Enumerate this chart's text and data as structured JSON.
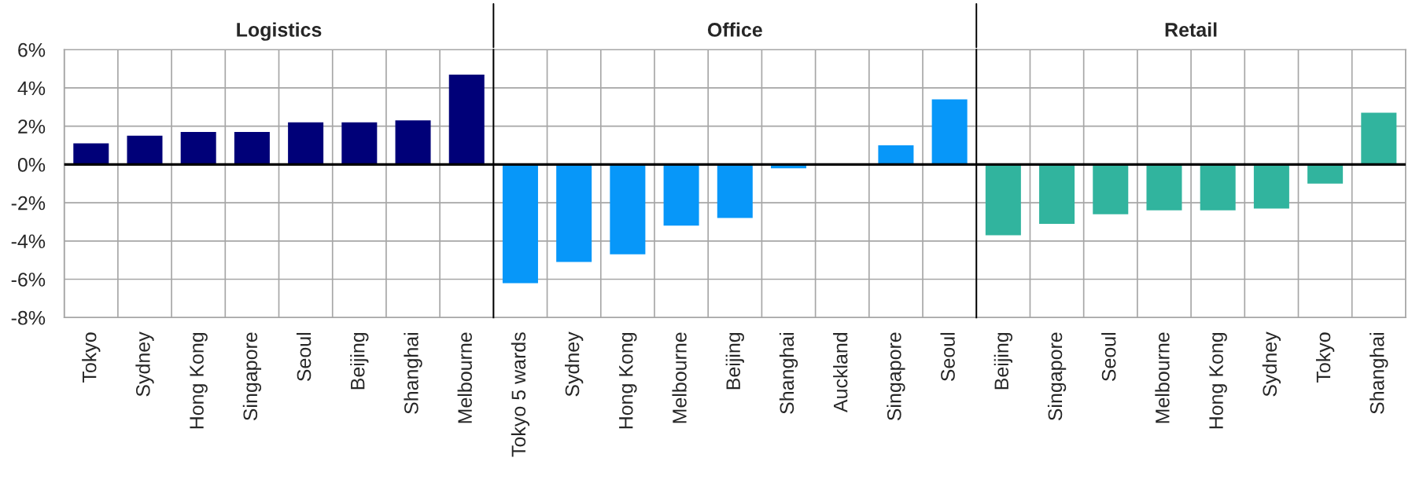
{
  "chart_data": [
    {
      "type": "bar",
      "title": "Logistics",
      "categories": [
        "Tokyo",
        "Sydney",
        "Hong Kong",
        "Singapore",
        "Seoul",
        "Beijing",
        "Shanghai",
        "Melbourne"
      ],
      "values": [
        1.1,
        1.5,
        1.7,
        1.7,
        2.2,
        2.2,
        2.3,
        4.7
      ],
      "color": "#000078",
      "ylim": [
        -8,
        6
      ],
      "yticks": [
        {
          "value": -8,
          "label": "-8%"
        },
        {
          "value": -6,
          "label": "-6%"
        },
        {
          "value": -4,
          "label": "-4%"
        },
        {
          "value": -2,
          "label": "-2%"
        },
        {
          "value": 0,
          "label": "0%"
        },
        {
          "value": 2,
          "label": "2%"
        },
        {
          "value": 4,
          "label": "4%"
        },
        {
          "value": 6,
          "label": "6%"
        }
      ],
      "grid": true,
      "ref_lines": [
        {
          "axis": "y",
          "value": 0,
          "color": "#000000"
        }
      ]
    },
    {
      "type": "bar",
      "title": "Office",
      "categories": [
        "Tokyo 5 wards",
        "Sydney",
        "Hong Kong",
        "Melbourne",
        "Beijing",
        "Shanghai",
        "Auckland",
        "Singapore",
        "Seoul"
      ],
      "values": [
        -6.2,
        -5.1,
        -4.7,
        -3.2,
        -2.8,
        -0.2,
        0,
        1.0,
        3.4
      ],
      "color": "#0797f9",
      "ylim": [
        -8,
        6
      ],
      "yticks": [
        -8,
        -6,
        -4,
        -2,
        0,
        2,
        4,
        6
      ],
      "grid": true,
      "tick_labels": "x",
      "ref_lines": [
        {
          "axis": "y",
          "value": 0,
          "color": "#000000"
        }
      ]
    },
    {
      "type": "bar",
      "title": "Retail",
      "categories": [
        "Beijing",
        "Singapore",
        "Seoul",
        "Melbourne",
        "Hong Kong",
        "Sydney",
        "Tokyo",
        "Shanghai"
      ],
      "values": [
        -3.7,
        -3.1,
        -2.6,
        -2.4,
        -2.4,
        -2.3,
        -1.0,
        2.7
      ],
      "color": "#31b49e",
      "ylim": [
        -8,
        6
      ],
      "yticks": [
        -8,
        -6,
        -4,
        -2,
        0,
        2,
        4,
        6
      ],
      "grid": true,
      "tick_labels": "x",
      "ref_lines": [
        {
          "axis": "y",
          "value": 0,
          "color": "#000000"
        }
      ]
    }
  ]
}
